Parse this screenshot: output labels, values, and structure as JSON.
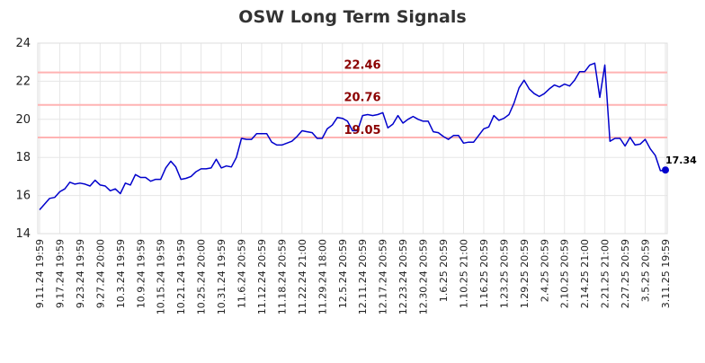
{
  "chart_data": {
    "type": "line",
    "title": "OSW Long Term Signals",
    "xlabel": "",
    "ylabel": "",
    "ylim": [
      14,
      24
    ],
    "yticks": [
      14,
      16,
      18,
      20,
      22,
      24
    ],
    "grid": true,
    "line_color": "#0000cc",
    "hline_color": "#ffb3b3",
    "hline_label_color": "#8b0000",
    "horizontal_lines": [
      {
        "value": 22.46,
        "label": "22.46"
      },
      {
        "value": 20.76,
        "label": "20.76"
      },
      {
        "value": 19.05,
        "label": "19.05"
      }
    ],
    "x_tick_labels": [
      "9.11.24 19:59",
      "9.17.24 19:59",
      "9.23.24 19:59",
      "9.27.24 20:00",
      "10.3.24 19:59",
      "10.9.24 19:59",
      "10.15.24 19:59",
      "10.21.24 19:59",
      "10.25.24 20:00",
      "10.31.24 19:59",
      "11.6.24 20:59",
      "11.12.24 20:59",
      "11.18.24 20:59",
      "11.22.24 21:00",
      "11.29.24 18:00",
      "12.5.24 20:59",
      "12.11.24 20:59",
      "12.17.24 20:59",
      "12.23.24 20:59",
      "12.30.24 20:59",
      "1.6.25 20:59",
      "1.10.25 21:00",
      "1.16.25 20:59",
      "1.23.25 20:59",
      "1.29.25 20:59",
      "2.4.25 20:59",
      "2.10.25 20:59",
      "2.14.25 21:00",
      "2.21.25 21:00",
      "2.27.25 20:59",
      "3.5.25 20:59",
      "3.11.25 19:59"
    ],
    "values": [
      15.25,
      15.55,
      15.85,
      15.9,
      16.2,
      16.35,
      16.7,
      16.6,
      16.65,
      16.6,
      16.5,
      16.8,
      16.55,
      16.5,
      16.25,
      16.35,
      16.1,
      16.65,
      16.55,
      17.1,
      16.95,
      16.95,
      16.75,
      16.85,
      16.85,
      17.45,
      17.8,
      17.5,
      16.85,
      16.9,
      17.0,
      17.25,
      17.4,
      17.4,
      17.45,
      17.9,
      17.45,
      17.55,
      17.5,
      18.0,
      19.0,
      18.95,
      18.95,
      19.25,
      19.25,
      19.25,
      18.8,
      18.65,
      18.65,
      18.75,
      18.85,
      19.1,
      19.4,
      19.35,
      19.3,
      19.0,
      19.0,
      19.5,
      19.7,
      20.1,
      20.05,
      19.9,
      19.4,
      19.4,
      20.2,
      20.25,
      20.2,
      20.25,
      20.35,
      19.55,
      19.75,
      20.2,
      19.8,
      20.0,
      20.15,
      20.0,
      19.9,
      19.9,
      19.35,
      19.3,
      19.1,
      18.95,
      19.15,
      19.15,
      18.75,
      18.8,
      18.8,
      19.15,
      19.5,
      19.6,
      20.2,
      19.95,
      20.05,
      20.25,
      20.85,
      21.65,
      22.05,
      21.6,
      21.35,
      21.2,
      21.35,
      21.6,
      21.8,
      21.7,
      21.85,
      21.75,
      22.05,
      22.5,
      22.5,
      22.85,
      22.95,
      21.15,
      22.85,
      18.85,
      19.0,
      19.0,
      18.6,
      19.05,
      18.65,
      18.7,
      18.95,
      18.45,
      18.1,
      17.3,
      17.34
    ],
    "last_value": 17.34,
    "last_value_label": "17.34"
  }
}
